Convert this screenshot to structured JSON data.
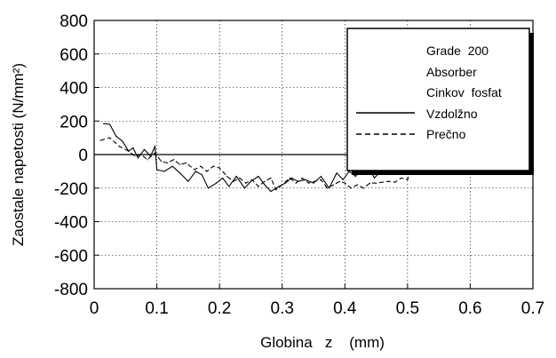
{
  "chart_data": {
    "type": "line",
    "xlabel": "Globina   z    (mm)",
    "ylabel": "Zaostale  napetosti  (N/mm²)",
    "xlim": [
      0,
      0.7
    ],
    "ylim": [
      -800,
      800
    ],
    "x_ticks": [
      "0",
      "0.1",
      "0.2",
      "0.3",
      "0.4",
      "0.5",
      "0.6",
      "0.7"
    ],
    "y_ticks": [
      "800",
      "600",
      "400",
      "200",
      "0",
      "-200",
      "-400",
      "-600",
      "-800"
    ],
    "x_tick_values": [
      0,
      0.1,
      0.2,
      0.3,
      0.4,
      0.5,
      0.6,
      0.7
    ],
    "y_tick_values": [
      800,
      600,
      400,
      200,
      0,
      -200,
      -400,
      -600,
      -800
    ],
    "grid": true,
    "legend_position": "top-right",
    "legend_header": [
      "Grade  200",
      "Absorber",
      "Cinkov  fosfat"
    ],
    "series": [
      {
        "name": "Vzdolžno",
        "style": "solid",
        "color": "#000000",
        "points": [
          [
            0.015,
            185
          ],
          [
            0.025,
            180
          ],
          [
            0.035,
            110
          ],
          [
            0.045,
            80
          ],
          [
            0.055,
            20
          ],
          [
            0.062,
            40
          ],
          [
            0.07,
            -20
          ],
          [
            0.08,
            30
          ],
          [
            0.09,
            -10
          ],
          [
            0.097,
            50
          ],
          [
            0.1,
            -90
          ],
          [
            0.112,
            -100
          ],
          [
            0.125,
            -70
          ],
          [
            0.137,
            -110
          ],
          [
            0.15,
            -160
          ],
          [
            0.162,
            -100
          ],
          [
            0.172,
            -120
          ],
          [
            0.182,
            -200
          ],
          [
            0.195,
            -170
          ],
          [
            0.205,
            -140
          ],
          [
            0.215,
            -190
          ],
          [
            0.227,
            -130
          ],
          [
            0.24,
            -200
          ],
          [
            0.25,
            -160
          ],
          [
            0.262,
            -130
          ],
          [
            0.272,
            -180
          ],
          [
            0.282,
            -220
          ],
          [
            0.295,
            -190
          ],
          [
            0.305,
            -170
          ],
          [
            0.315,
            -140
          ],
          [
            0.325,
            -160
          ],
          [
            0.337,
            -150
          ],
          [
            0.35,
            -170
          ],
          [
            0.362,
            -130
          ],
          [
            0.375,
            -200
          ],
          [
            0.387,
            -110
          ],
          [
            0.397,
            -150
          ],
          [
            0.407,
            -100
          ],
          [
            0.417,
            -130
          ],
          [
            0.427,
            -90
          ],
          [
            0.437,
            -70
          ],
          [
            0.447,
            -140
          ],
          [
            0.457,
            -100
          ],
          [
            0.467,
            -80
          ],
          [
            0.477,
            -110
          ],
          [
            0.487,
            -50
          ],
          [
            0.497,
            -70
          ],
          [
            0.507,
            -40
          ],
          [
            0.517,
            -100
          ],
          [
            0.527,
            -10
          ],
          [
            0.537,
            20
          ],
          [
            0.545,
            0
          ]
        ]
      },
      {
        "name": "Prečno",
        "style": "dashed",
        "color": "#000000",
        "points": [
          [
            0.01,
            85
          ],
          [
            0.025,
            100
          ],
          [
            0.04,
            50
          ],
          [
            0.055,
            20
          ],
          [
            0.065,
            -10
          ],
          [
            0.075,
            0
          ],
          [
            0.085,
            -30
          ],
          [
            0.097,
            10
          ],
          [
            0.107,
            -40
          ],
          [
            0.117,
            -50
          ],
          [
            0.127,
            -30
          ],
          [
            0.137,
            -60
          ],
          [
            0.147,
            -50
          ],
          [
            0.16,
            -90
          ],
          [
            0.17,
            -70
          ],
          [
            0.18,
            -100
          ],
          [
            0.19,
            -70
          ],
          [
            0.2,
            -80
          ],
          [
            0.212,
            -130
          ],
          [
            0.222,
            -160
          ],
          [
            0.232,
            -140
          ],
          [
            0.242,
            -170
          ],
          [
            0.252,
            -150
          ],
          [
            0.262,
            -190
          ],
          [
            0.272,
            -160
          ],
          [
            0.282,
            -140
          ],
          [
            0.29,
            -210
          ],
          [
            0.3,
            -180
          ],
          [
            0.312,
            -140
          ],
          [
            0.322,
            -170
          ],
          [
            0.332,
            -140
          ],
          [
            0.342,
            -170
          ],
          [
            0.352,
            -160
          ],
          [
            0.362,
            -150
          ],
          [
            0.372,
            -200
          ],
          [
            0.382,
            -180
          ],
          [
            0.392,
            -160
          ],
          [
            0.4,
            -170
          ],
          [
            0.41,
            -200
          ],
          [
            0.42,
            -180
          ],
          [
            0.43,
            -200
          ],
          [
            0.44,
            -170
          ],
          [
            0.45,
            -170
          ],
          [
            0.46,
            -165
          ],
          [
            0.47,
            -160
          ],
          [
            0.48,
            -165
          ],
          [
            0.49,
            -140
          ],
          [
            0.5,
            -150
          ],
          [
            0.51,
            -10
          ],
          [
            0.52,
            -70
          ],
          [
            0.53,
            -70
          ],
          [
            0.54,
            -90
          ],
          [
            0.55,
            -80
          ],
          [
            0.56,
            -70
          ],
          [
            0.57,
            -70
          ],
          [
            0.58,
            -75
          ],
          [
            0.59,
            -70
          ],
          [
            0.6,
            -70
          ],
          [
            0.61,
            -75
          ],
          [
            0.62,
            -65
          ],
          [
            0.63,
            -60
          ],
          [
            0.64,
            -50
          ],
          [
            0.65,
            10
          ],
          [
            0.66,
            -60
          ],
          [
            0.67,
            -40
          ],
          [
            0.68,
            -50
          ],
          [
            0.69,
            -60
          ]
        ]
      }
    ]
  }
}
